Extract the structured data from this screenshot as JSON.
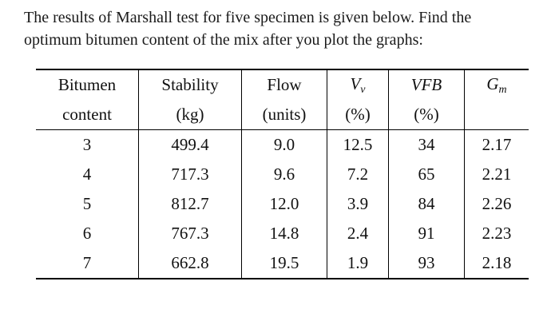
{
  "question": {
    "line1": "The results of Marshall test for five specimen is given below. Find the",
    "line2": "optimum bitumen content of the mix after you plot the graphs:"
  },
  "table": {
    "headers": {
      "bitumen": {
        "top": "Bitumen",
        "bottom": "content"
      },
      "stability": {
        "top": "Stability",
        "bottom": "(kg)"
      },
      "flow": {
        "top": "Flow",
        "bottom": "(units)"
      },
      "vv": {
        "base": "V",
        "sub": "v",
        "bottom": "(%)"
      },
      "vfb": {
        "top": "VFB",
        "bottom": "(%)"
      },
      "gm": {
        "base": "G",
        "sub": "m"
      }
    },
    "rows": [
      {
        "bitumen": "3",
        "stability": "499.4",
        "flow": "9.0",
        "vv": "12.5",
        "vfb": "34",
        "gm": "2.17"
      },
      {
        "bitumen": "4",
        "stability": "717.3",
        "flow": "9.6",
        "vv": "7.2",
        "vfb": "65",
        "gm": "2.21"
      },
      {
        "bitumen": "5",
        "stability": "812.7",
        "flow": "12.0",
        "vv": "3.9",
        "vfb": "84",
        "gm": "2.26"
      },
      {
        "bitumen": "6",
        "stability": "767.3",
        "flow": "14.8",
        "vv": "2.4",
        "vfb": "91",
        "gm": "2.23"
      },
      {
        "bitumen": "7",
        "stability": "662.8",
        "flow": "19.5",
        "vv": "1.9",
        "vfb": "93",
        "gm": "2.18"
      }
    ]
  }
}
